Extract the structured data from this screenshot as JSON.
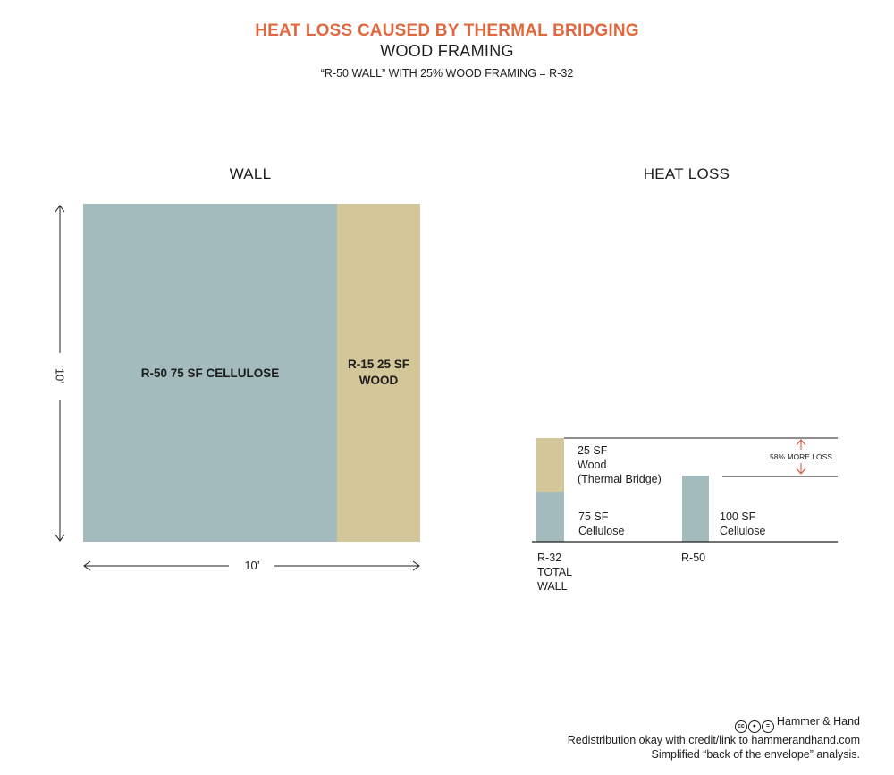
{
  "colors": {
    "accent": "#e0683f",
    "cellulose": "#a3bbbc",
    "wood": "#d3c699",
    "arrow_red": "#d94a2e",
    "ink": "#1d1d1d"
  },
  "header": {
    "title": "HEAT LOSS CAUSED BY THERMAL BRIDGING",
    "subtitle": "WOOD FRAMING",
    "tagline": "“R-50 WALL”  WITH 25% WOOD FRAMING = R-32"
  },
  "wall": {
    "heading": "WALL",
    "cellulose_label": "R-50 75 SF CELLULOSE",
    "wood_label_line1": "R-15 25 SF",
    "wood_label_line2": "WOOD",
    "height_label": "10’",
    "width_label": "10’",
    "cellulose_share": 0.75,
    "wood_share": 0.25
  },
  "heat_loss": {
    "heading": "HEAT LOSS",
    "wood_label_line1": "25 SF",
    "wood_label_line2": "Wood",
    "wood_label_line3": "(Thermal Bridge)",
    "cellulose75_line1": "75 SF",
    "cellulose75_line2": "Cellulose",
    "cellulose100_line1": "100 SF",
    "cellulose100_line2": "Cellulose",
    "more_loss_label": "58% MORE LOSS",
    "bar1_line1": "R-32",
    "bar1_line2": "TOTAL",
    "bar1_line3": "WALL",
    "bar2_label": "R-50"
  },
  "footer": {
    "icon_names": [
      "cc-icon",
      "attribution-icon",
      "no-derivatives-icon"
    ],
    "brand": "Hammer & Hand",
    "line2": "Redistribution okay with credit/link to hammerandhand.com",
    "line3": "Simplified “back of the envelope” analysis."
  }
}
